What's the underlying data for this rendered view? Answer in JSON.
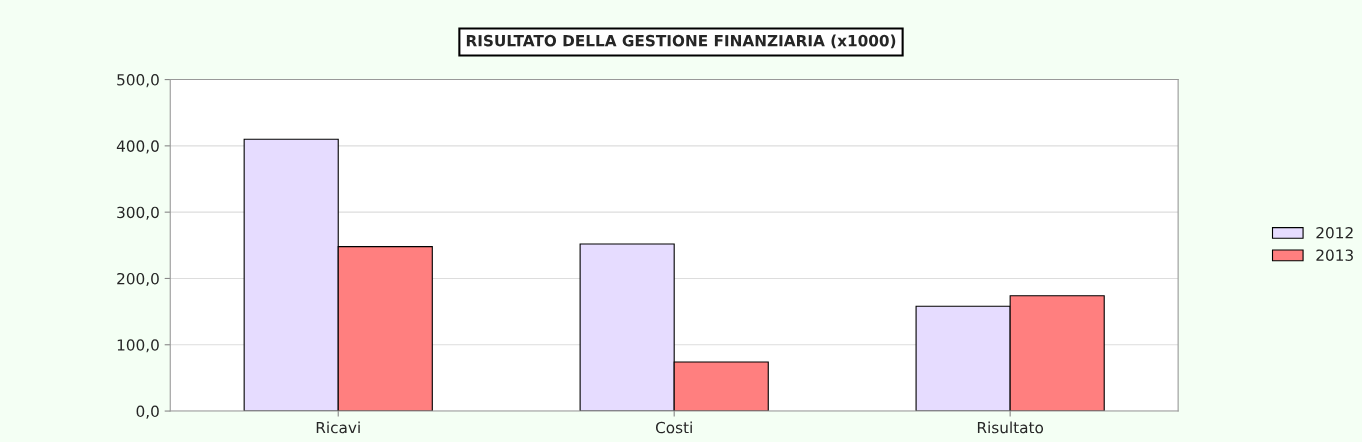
{
  "chart_data": {
    "type": "bar",
    "title": "RISULTATO DELLA GESTIONE FINANZIARIA (x1000)",
    "categories": [
      "Ricavi",
      "Costi",
      "Risultato"
    ],
    "series": [
      {
        "name": "2012",
        "color": "#e6dcff",
        "values": [
          410,
          252,
          158
        ]
      },
      {
        "name": "2013",
        "color": "#ff7f7f",
        "values": [
          248,
          74,
          174
        ]
      }
    ],
    "ylim": [
      0,
      500
    ],
    "yticks": [
      {
        "value": 0,
        "label": "0,0"
      },
      {
        "value": 100,
        "label": "100,0"
      },
      {
        "value": 200,
        "label": "200,0"
      },
      {
        "value": 300,
        "label": "300,0"
      },
      {
        "value": 400,
        "label": "400,0"
      },
      {
        "value": 500,
        "label": "500,0"
      }
    ],
    "grid": "y",
    "legend": "right"
  }
}
